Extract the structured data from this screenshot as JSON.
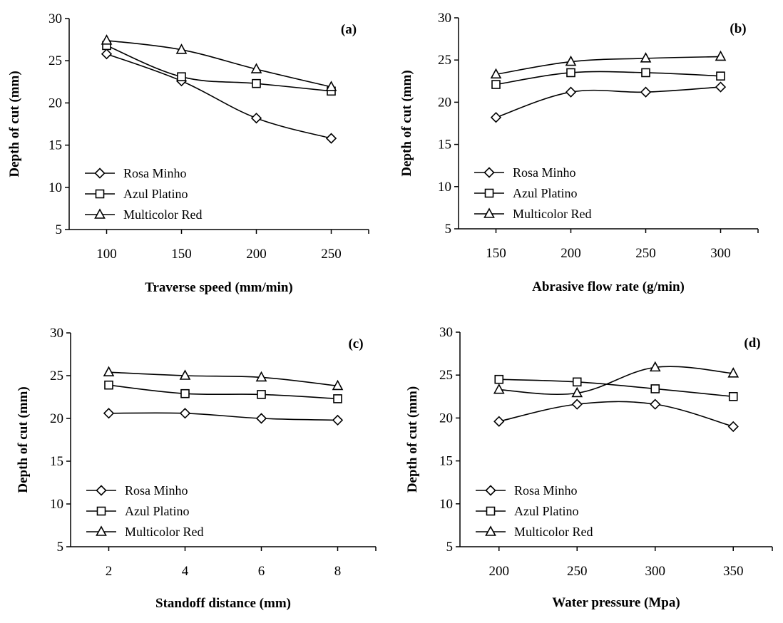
{
  "chart_data": [
    {
      "type": "line",
      "panel_label": "(a)",
      "xlabel": "Traverse speed (mm/min)",
      "ylabel": "Depth of cut (mm)",
      "x": [
        100,
        150,
        200,
        250
      ],
      "x_ticks": [
        "100",
        "150",
        "200",
        "250"
      ],
      "xlim": [
        75,
        275
      ],
      "ylim": [
        5,
        30
      ],
      "y_ticks": [
        5,
        10,
        15,
        20,
        25,
        30
      ],
      "legend_position": "lower-left",
      "series": [
        {
          "name": "Rosa Minho",
          "marker": "diamond",
          "values": [
            25.8,
            22.6,
            18.2,
            15.8
          ]
        },
        {
          "name": "Azul Platino",
          "marker": "square",
          "values": [
            26.8,
            23.1,
            22.3,
            21.4
          ]
        },
        {
          "name": "Multicolor Red",
          "marker": "triangle",
          "values": [
            27.4,
            26.3,
            24.0,
            21.9
          ]
        }
      ]
    },
    {
      "type": "line",
      "panel_label": "(b)",
      "xlabel": "Abrasive flow rate (g/min)",
      "ylabel": "Depth of cut (mm)",
      "x": [
        150,
        200,
        250,
        300
      ],
      "x_ticks": [
        "150",
        "200",
        "250",
        "300"
      ],
      "xlim": [
        125,
        325
      ],
      "ylim": [
        5,
        30
      ],
      "y_ticks": [
        5,
        10,
        15,
        20,
        25,
        30
      ],
      "legend_position": "lower-left",
      "series": [
        {
          "name": "Rosa Minho",
          "marker": "diamond",
          "values": [
            18.2,
            21.2,
            21.2,
            21.8
          ]
        },
        {
          "name": "Azul Platino",
          "marker": "square",
          "values": [
            22.1,
            23.5,
            23.5,
            23.1
          ]
        },
        {
          "name": "Multicolor Red",
          "marker": "triangle",
          "values": [
            23.3,
            24.8,
            25.2,
            25.4
          ]
        }
      ]
    },
    {
      "type": "line",
      "panel_label": "(c)",
      "xlabel": "Standoff distance (mm)",
      "ylabel": "Depth of cut (mm)",
      "x": [
        2,
        4,
        6,
        8
      ],
      "x_ticks": [
        "2",
        "4",
        "6",
        "8"
      ],
      "xlim": [
        1,
        9
      ],
      "ylim": [
        5,
        30
      ],
      "y_ticks": [
        5,
        10,
        15,
        20,
        25,
        30
      ],
      "legend_position": "lower-left",
      "series": [
        {
          "name": "Rosa Minho",
          "marker": "diamond",
          "values": [
            20.6,
            20.6,
            20.0,
            19.8
          ]
        },
        {
          "name": "Azul Platino",
          "marker": "square",
          "values": [
            23.9,
            22.9,
            22.8,
            22.3
          ]
        },
        {
          "name": "Multicolor Red",
          "marker": "triangle",
          "values": [
            25.4,
            25.0,
            24.8,
            23.8
          ]
        }
      ]
    },
    {
      "type": "line",
      "panel_label": "(d)",
      "xlabel": "Water pressure (Mpa)",
      "ylabel": "Depth of cut (mm)",
      "x": [
        200,
        250,
        300,
        350
      ],
      "x_ticks": [
        "200",
        "250",
        "300",
        "350"
      ],
      "xlim": [
        175,
        375
      ],
      "ylim": [
        5,
        30
      ],
      "y_ticks": [
        5,
        10,
        15,
        20,
        25,
        30
      ],
      "legend_position": "lower-left",
      "series": [
        {
          "name": "Rosa Minho",
          "marker": "diamond",
          "values": [
            19.6,
            21.6,
            21.6,
            19.0
          ]
        },
        {
          "name": "Azul Platino",
          "marker": "square",
          "values": [
            24.5,
            24.2,
            23.4,
            22.5
          ]
        },
        {
          "name": "Multicolor Red",
          "marker": "triangle",
          "values": [
            23.3,
            22.9,
            25.9,
            25.2
          ]
        }
      ]
    }
  ]
}
